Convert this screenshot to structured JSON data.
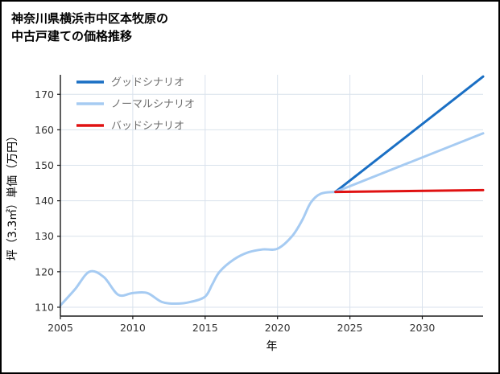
{
  "title": {
    "line1": "神奈川県横浜市中区本牧原の",
    "line2": "中古戸建ての価格推移"
  },
  "chart_data": {
    "type": "line",
    "title": "神奈川県横浜市中区本牧原の中古戸建ての価格推移",
    "xlabel": "年",
    "ylabel": "坪（3.3㎡）単価（万円）",
    "xlim": [
      2005,
      2034.2
    ],
    "ylim": [
      107.5,
      175.5
    ],
    "xticks": [
      2005,
      2010,
      2015,
      2020,
      2025,
      2030
    ],
    "yticks": [
      110,
      120,
      130,
      140,
      150,
      160,
      170
    ],
    "grid": true,
    "legend_position": "upper-left",
    "colors": {
      "good": "#1a6fc4",
      "normal": "#a6cbf2",
      "bad": "#e01212",
      "grid": "#d9e2ec",
      "axis": "#1a1a1a",
      "tick_text": "#333333",
      "legend_text": "#6e6e6e"
    },
    "legend": [
      {
        "label": "グッドシナリオ",
        "series": "good-scenario"
      },
      {
        "label": "ノーマルシナリオ",
        "series": "normal-scenario"
      },
      {
        "label": "バッドシナリオ",
        "series": "bad-scenario"
      }
    ],
    "series": [
      {
        "name": "historical",
        "color_key": "normal",
        "smooth": true,
        "x": [
          2005,
          2006,
          2007,
          2008,
          2009,
          2010,
          2011,
          2012,
          2013,
          2014,
          2015,
          2015.5,
          2016,
          2017,
          2018,
          2019,
          2020,
          2021,
          2021.7,
          2022.3,
          2023,
          2024
        ],
        "y": [
          110.5,
          115,
          120,
          118.5,
          113.5,
          114,
          114,
          111.5,
          111,
          111.5,
          113,
          116.5,
          120,
          123.5,
          125.5,
          126.3,
          126.5,
          130,
          134.5,
          139.5,
          142,
          142.5
        ]
      },
      {
        "name": "good-scenario",
        "color_key": "good",
        "smooth": false,
        "x": [
          2024,
          2034.2
        ],
        "y": [
          142.5,
          175
        ]
      },
      {
        "name": "normal-scenario",
        "color_key": "normal",
        "smooth": false,
        "x": [
          2024,
          2034.2
        ],
        "y": [
          142.5,
          159
        ]
      },
      {
        "name": "bad-scenario",
        "color_key": "bad",
        "smooth": false,
        "x": [
          2024,
          2034.2
        ],
        "y": [
          142.5,
          143
        ]
      }
    ]
  }
}
